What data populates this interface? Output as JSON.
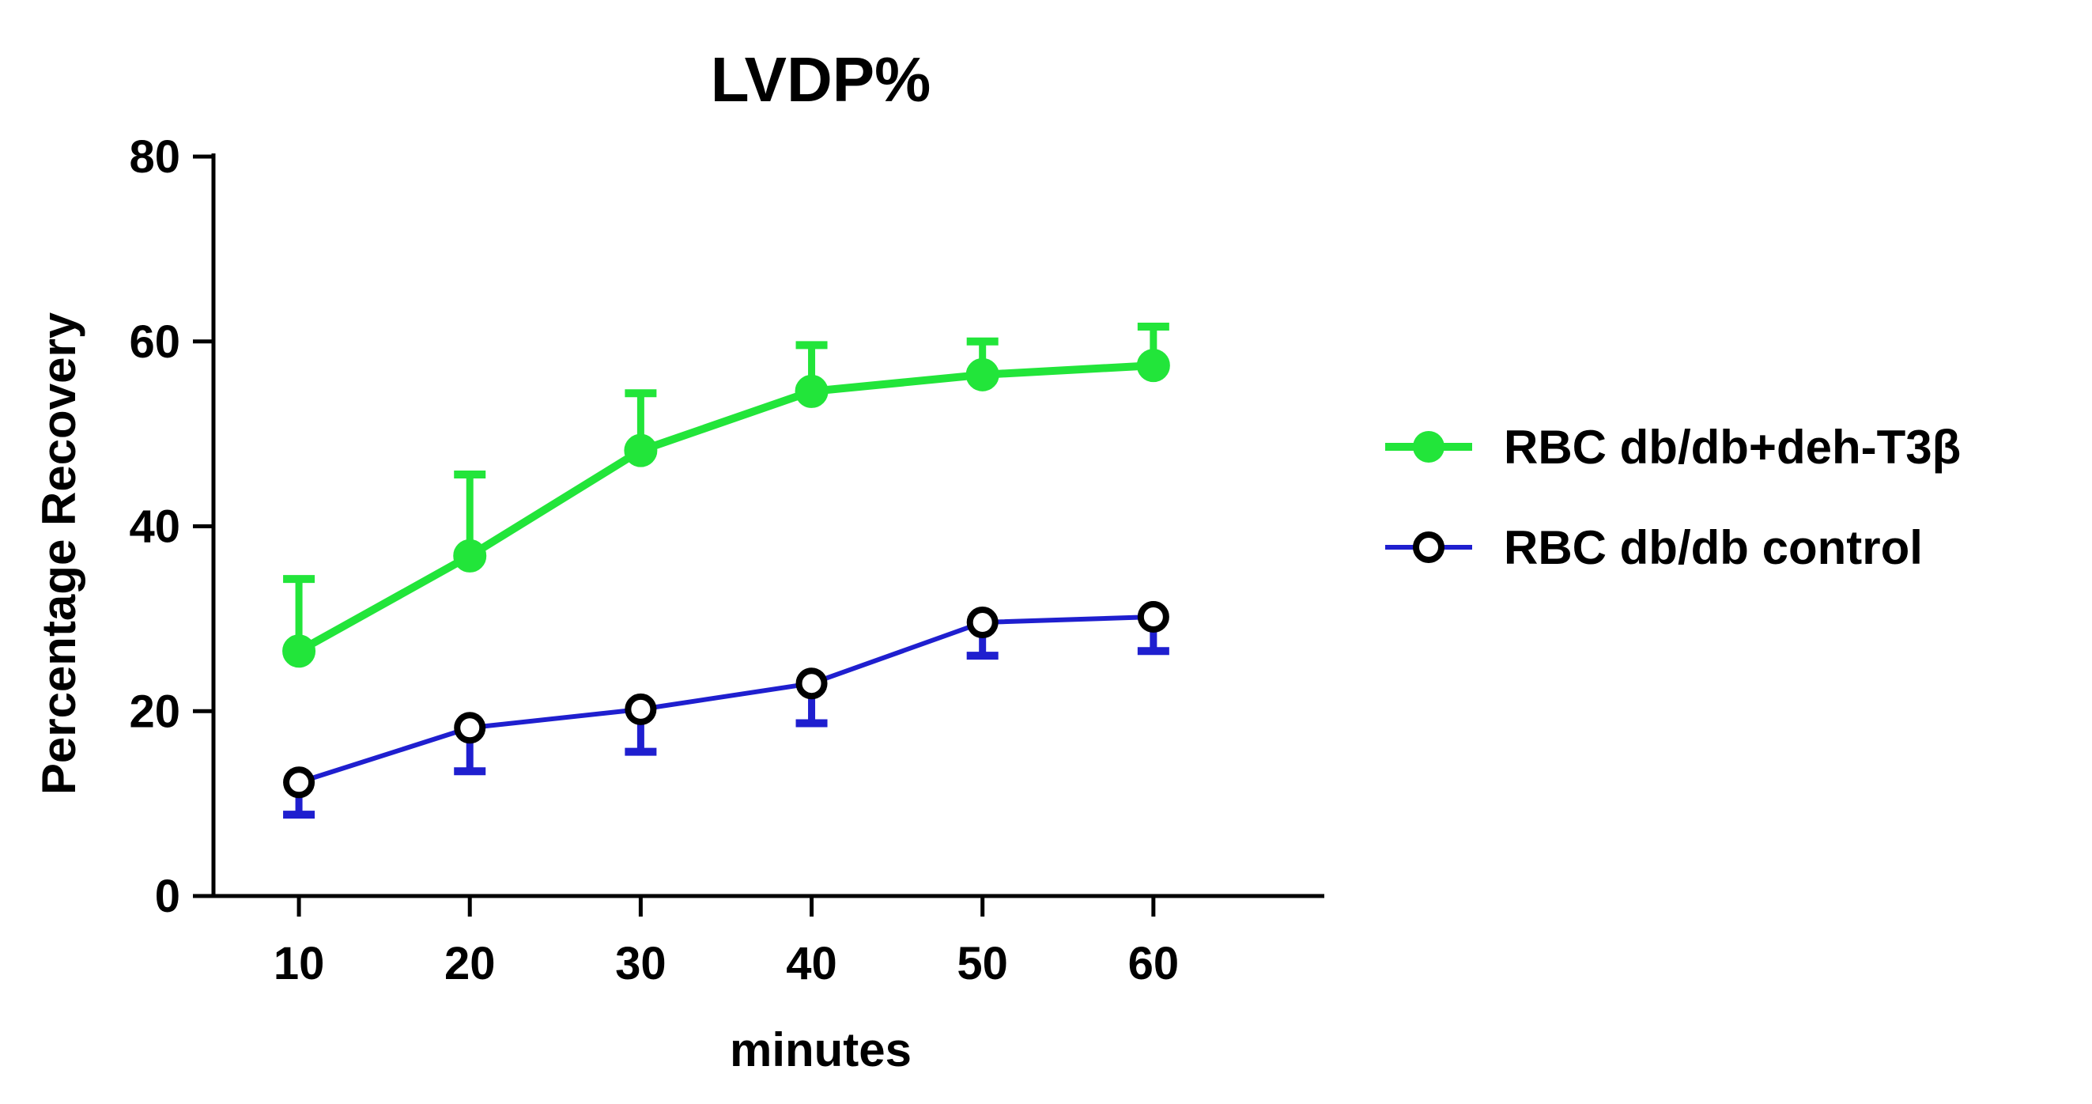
{
  "chart_data": {
    "type": "line",
    "title": "LVDP%",
    "xlabel": "minutes",
    "ylabel": "Percentage Recovery",
    "x": [
      10,
      20,
      30,
      40,
      50,
      60
    ],
    "xticks": [
      "10",
      "20",
      "30",
      "40",
      "50",
      "60"
    ],
    "xlim": [
      5,
      70
    ],
    "ylim": [
      0,
      80
    ],
    "yticks": [
      "0",
      "20",
      "40",
      "60",
      "80"
    ],
    "yticks_values": [
      0,
      20,
      40,
      60,
      80
    ],
    "grid": false,
    "legend_position": "right",
    "series": [
      {
        "name": "RBC db/db+deh-T3β",
        "color": "#22e53a",
        "marker": "filled-circle",
        "error_direction": "up",
        "values": [
          26.5,
          36.8,
          48.2,
          54.6,
          56.4,
          57.4
        ],
        "errors": [
          7.8,
          8.8,
          6.2,
          5.0,
          3.6,
          4.2
        ]
      },
      {
        "name": "RBC db/db control",
        "color": "#1f1fcf",
        "marker": "open-circle",
        "error_direction": "down",
        "values": [
          12.3,
          18.2,
          20.2,
          23.0,
          29.6,
          30.2
        ],
        "errors": [
          3.5,
          4.7,
          4.6,
          4.3,
          3.6,
          3.7
        ]
      }
    ]
  }
}
